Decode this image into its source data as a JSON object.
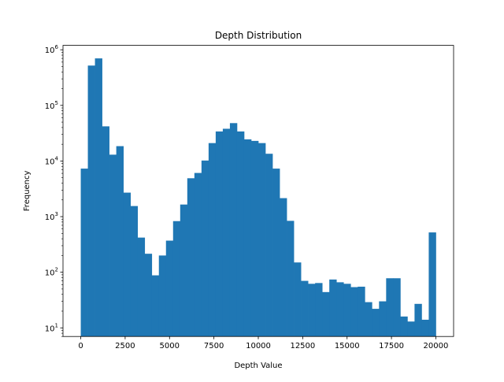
{
  "chart_data": {
    "type": "bar",
    "title": "Depth Distribution",
    "xlabel": "Depth Value",
    "ylabel": "Frequency",
    "yscale": "log",
    "xlim": [
      -1000,
      21000
    ],
    "ylim": [
      7,
      1200000
    ],
    "bin_width": 400,
    "bin_start": 0,
    "grid": false,
    "bar_color": "#1f77b4",
    "x_ticks": [
      0,
      2500,
      5000,
      7500,
      10000,
      12500,
      15000,
      17500,
      20000
    ],
    "x_tick_labels": [
      "0",
      "2500",
      "5000",
      "7500",
      "10000",
      "12500",
      "15000",
      "17500",
      "20000"
    ],
    "y_ticks": [
      10,
      100,
      1000,
      10000,
      100000,
      1000000
    ],
    "y_tick_base": "10",
    "y_tick_exponents": [
      "1",
      "2",
      "3",
      "4",
      "5",
      "6"
    ],
    "values": [
      7300,
      520000,
      700000,
      42000,
      13000,
      18500,
      2700,
      1550,
      420,
      215,
      88,
      200,
      370,
      830,
      1650,
      4900,
      6100,
      10200,
      21000,
      34000,
      38000,
      48000,
      34000,
      24500,
      23000,
      21000,
      13500,
      7300,
      2150,
      840,
      150,
      70,
      62,
      64,
      44,
      74,
      66,
      62,
      54,
      55,
      29,
      22,
      30,
      78,
      78,
      16,
      13,
      27,
      14,
      520
    ]
  }
}
